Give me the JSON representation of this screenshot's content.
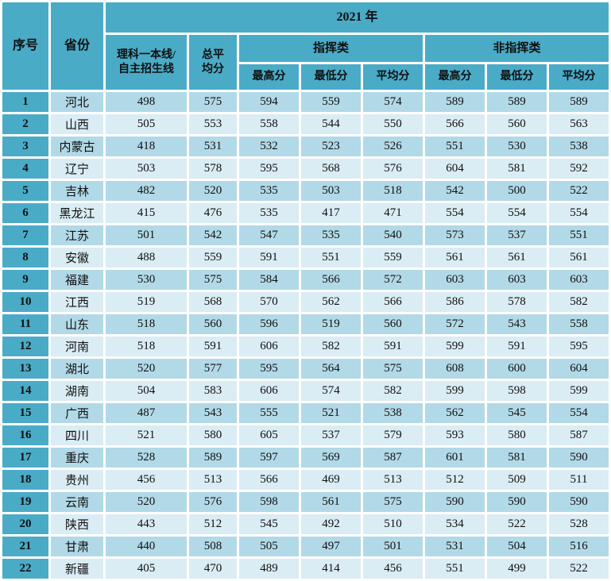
{
  "colors": {
    "header_bg": "#4aabc7",
    "band_odd_bg": "#b2d9e7",
    "band_even_bg": "#daecf4",
    "grid_gap": "#ffffff",
    "text": "#101010"
  },
  "table": {
    "headers": {
      "serial": "序号",
      "province": "省份",
      "year": "2021 年",
      "science_line_1": "理科一本线/",
      "science_line_2": "自主招生线",
      "total_avg_1": "总平",
      "total_avg_2": "均分",
      "command_group": "指挥类",
      "noncommand_group": "非指挥类",
      "max": "最高分",
      "min": "最低分",
      "avg": "平均分"
    },
    "rows": [
      {
        "no": "1",
        "province": "河北",
        "values": [
          "498",
          "575",
          "594",
          "559",
          "574",
          "589",
          "589",
          "589"
        ]
      },
      {
        "no": "2",
        "province": "山西",
        "values": [
          "505",
          "553",
          "558",
          "544",
          "550",
          "566",
          "560",
          "563"
        ]
      },
      {
        "no": "3",
        "province": "内蒙古",
        "values": [
          "418",
          "531",
          "532",
          "523",
          "526",
          "551",
          "530",
          "538"
        ]
      },
      {
        "no": "4",
        "province": "辽宁",
        "values": [
          "503",
          "578",
          "595",
          "568",
          "576",
          "604",
          "581",
          "592"
        ]
      },
      {
        "no": "5",
        "province": "吉林",
        "values": [
          "482",
          "520",
          "535",
          "503",
          "518",
          "542",
          "500",
          "522"
        ]
      },
      {
        "no": "6",
        "province": "黑龙江",
        "values": [
          "415",
          "476",
          "535",
          "417",
          "471",
          "554",
          "554",
          "554"
        ]
      },
      {
        "no": "7",
        "province": "江苏",
        "values": [
          "501",
          "542",
          "547",
          "535",
          "540",
          "573",
          "537",
          "551"
        ]
      },
      {
        "no": "8",
        "province": "安徽",
        "values": [
          "488",
          "559",
          "591",
          "551",
          "559",
          "561",
          "561",
          "561"
        ]
      },
      {
        "no": "9",
        "province": "福建",
        "values": [
          "530",
          "575",
          "584",
          "566",
          "572",
          "603",
          "603",
          "603"
        ]
      },
      {
        "no": "10",
        "province": "江西",
        "values": [
          "519",
          "568",
          "570",
          "562",
          "566",
          "586",
          "578",
          "582"
        ]
      },
      {
        "no": "11",
        "province": "山东",
        "values": [
          "518",
          "560",
          "596",
          "519",
          "560",
          "572",
          "543",
          "558"
        ]
      },
      {
        "no": "12",
        "province": "河南",
        "values": [
          "518",
          "591",
          "606",
          "582",
          "591",
          "599",
          "591",
          "595"
        ]
      },
      {
        "no": "13",
        "province": "湖北",
        "values": [
          "520",
          "577",
          "595",
          "564",
          "575",
          "608",
          "600",
          "604"
        ]
      },
      {
        "no": "14",
        "province": "湖南",
        "values": [
          "504",
          "583",
          "606",
          "574",
          "582",
          "599",
          "598",
          "599"
        ]
      },
      {
        "no": "15",
        "province": "广西",
        "values": [
          "487",
          "543",
          "555",
          "521",
          "538",
          "562",
          "545",
          "554"
        ]
      },
      {
        "no": "16",
        "province": "四川",
        "values": [
          "521",
          "580",
          "605",
          "537",
          "579",
          "593",
          "580",
          "587"
        ]
      },
      {
        "no": "17",
        "province": "重庆",
        "values": [
          "528",
          "589",
          "597",
          "569",
          "587",
          "601",
          "581",
          "590"
        ]
      },
      {
        "no": "18",
        "province": "贵州",
        "values": [
          "456",
          "513",
          "566",
          "469",
          "513",
          "512",
          "509",
          "511"
        ]
      },
      {
        "no": "19",
        "province": "云南",
        "values": [
          "520",
          "576",
          "598",
          "561",
          "575",
          "590",
          "590",
          "590"
        ]
      },
      {
        "no": "20",
        "province": "陕西",
        "values": [
          "443",
          "512",
          "545",
          "492",
          "510",
          "534",
          "522",
          "528"
        ]
      },
      {
        "no": "21",
        "province": "甘肃",
        "values": [
          "440",
          "508",
          "505",
          "497",
          "501",
          "531",
          "504",
          "516"
        ]
      },
      {
        "no": "22",
        "province": "新疆",
        "values": [
          "405",
          "470",
          "489",
          "414",
          "456",
          "551",
          "499",
          "522"
        ]
      }
    ]
  }
}
